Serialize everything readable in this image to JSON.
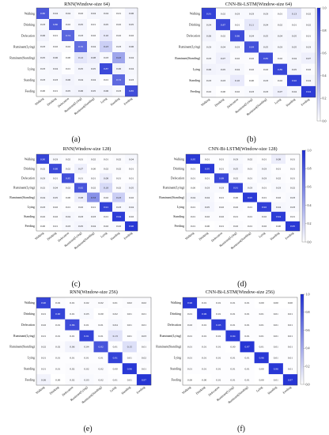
{
  "figure": {
    "captions": [
      "(a)",
      "(b)",
      "(c)",
      "(d)",
      "(e)",
      "(f)"
    ]
  },
  "colorscale": {
    "low": "#ffffff",
    "high": "#1f2fd3",
    "ticks": [
      "0.0",
      "0.2",
      "0.4",
      "0.6",
      "0.8",
      "1.0"
    ]
  },
  "chart_data": [
    {
      "type": "heatmap",
      "title": "RNN(Window-size 64)",
      "rows": [
        "Walking",
        "Drinking",
        "Defecation",
        "Ruminant(Lying)",
        "Ruminant(Standing)",
        "Lying",
        "Standing",
        "Feeding"
      ],
      "cols": [
        "Walking",
        "Drinking",
        "Defecation",
        "Ruminant(Lying)",
        "Ruminant(Standing)",
        "Lying",
        "Standing",
        "Feeding"
      ],
      "values": [
        [
          0.8,
          0.04,
          0.04,
          0.02,
          0.04,
          0.04,
          0.01,
          0.06
        ],
        [
          0.03,
          0.8,
          0.02,
          0.05,
          0.01,
          0.05,
          0.02,
          0.05
        ],
        [
          0.06,
          0.01,
          0.74,
          0.03,
          0.02,
          0.1,
          0.02,
          0.02
        ],
        [
          0.03,
          0.02,
          0.02,
          0.7,
          0.04,
          0.23,
          0.03,
          0.06
        ],
        [
          0.05,
          0.06,
          0.0,
          0.12,
          0.08,
          0.03,
          0.43,
          0.04
        ],
        [
          0.03,
          0.04,
          0.01,
          0.05,
          0.05,
          0.87,
          0.06,
          0.04
        ],
        [
          0.03,
          0.03,
          0.06,
          0.04,
          0.04,
          0.01,
          0.72,
          0.03
        ],
        [
          0.0,
          0.01,
          0.05,
          0.06,
          0.05,
          0.06,
          0.03,
          0.85
        ]
      ]
    },
    {
      "type": "heatmap",
      "title": "CNN-Bi-LSTM(Window-size 64)",
      "rows": [
        "Walking",
        "Drinking",
        "Defecation",
        "Ruminant(Lying)",
        "Ruminant(Standing)",
        "Lying",
        "Standing",
        "Feeding"
      ],
      "cols": [
        "Walking",
        "Drinking",
        "Defecation",
        "Ruminant(Lying)",
        "Ruminant(Standing)",
        "Lying",
        "Standing",
        "Feeding"
      ],
      "values": [
        [
          0.91,
          0.02,
          0.03,
          0.03,
          0.03,
          0.01,
          0.13,
          0.02
        ],
        [
          0.04,
          0.87,
          0.01,
          0.11,
          0.04,
          0.02,
          0.01,
          0.02
        ],
        [
          0.06,
          0.02,
          0.86,
          0.04,
          0.05,
          0.04,
          0.05,
          0.01
        ],
        [
          0.03,
          0.04,
          0.03,
          0.84,
          0.05,
          0.03,
          0.05,
          0.03
        ],
        [
          0.03,
          0.07,
          0.02,
          0.02,
          0.85,
          0.02,
          0.04,
          0.07
        ],
        [
          0.06,
          0.05,
          0.04,
          0.02,
          0.02,
          0.89,
          0.05,
          0.02
        ],
        [
          0.03,
          0.03,
          0.1,
          0.0,
          0.03,
          0.02,
          0.92,
          0.04
        ],
        [
          0.02,
          0.0,
          0.02,
          0.03,
          0.03,
          0.07,
          0.04,
          0.94
        ]
      ]
    },
    {
      "type": "heatmap",
      "title": "RNN(Window-size 128)",
      "rows": [
        "Walking",
        "Drinking",
        "Defecation",
        "Ruminant(Lying)",
        "Ruminant(Standing)",
        "Lying",
        "Standing",
        "Feeding"
      ],
      "cols": [
        "Walking",
        "Drinking",
        "Defecation",
        "Ruminant(Lying)",
        "Ruminant(Standing)",
        "Lying",
        "Standing",
        "Feeding"
      ],
      "values": [
        [
          0.9,
          0.03,
          0.02,
          0.01,
          0.02,
          0.01,
          0.02,
          0.04
        ],
        [
          0.02,
          0.88,
          0.02,
          0.07,
          0.0,
          0.02,
          0.02,
          0.01
        ],
        [
          0.03,
          0.01,
          0.85,
          0.01,
          0.01,
          0.08,
          0.01,
          0.01
        ],
        [
          0.02,
          0.04,
          0.02,
          0.82,
          0.02,
          0.18,
          0.02,
          0.05
        ],
        [
          0.04,
          0.05,
          0.0,
          0.08,
          0.53,
          0.02,
          0.23,
          0.02
        ],
        [
          0.03,
          0.02,
          0.01,
          0.02,
          0.01,
          0.91,
          0.03,
          0.04
        ],
        [
          0.02,
          0.02,
          0.04,
          0.03,
          0.03,
          0.01,
          0.94,
          0.02
        ],
        [
          0.0,
          0.01,
          0.03,
          0.05,
          0.04,
          0.02,
          0.02,
          0.96
        ]
      ]
    },
    {
      "type": "heatmap",
      "title": "CNN-Bi-LSTM(Window-size 128)",
      "rows": [
        "Walking",
        "Drinking",
        "Defecation",
        "Ruminant(Lying)",
        "Ruminant(Standing)",
        "Lying",
        "Standing",
        "Feeding"
      ],
      "cols": [
        "Walking",
        "Drinking",
        "Defecation",
        "Ruminant(Lying)",
        "Ruminant(Standing)",
        "Lying",
        "Standing",
        "Feeding"
      ],
      "values": [
        [
          0.95,
          0.01,
          0.01,
          0.03,
          0.02,
          0.01,
          0.08,
          0.01
        ],
        [
          0.01,
          0.95,
          0.01,
          0.05,
          0.01,
          0.03,
          0.01,
          0.01
        ],
        [
          0.01,
          0.01,
          0.89,
          0.02,
          0.01,
          0.03,
          0.02,
          0.01
        ],
        [
          0.0,
          0.03,
          0.03,
          0.91,
          0.03,
          0.01,
          0.03,
          0.02
        ],
        [
          0.04,
          0.04,
          0.01,
          0.0,
          0.95,
          0.01,
          0.02,
          0.03
        ],
        [
          0.01,
          0.05,
          0.02,
          0.02,
          0.01,
          0.92,
          0.04,
          0.03
        ],
        [
          0.01,
          0.02,
          0.02,
          0.01,
          0.01,
          0.02,
          0.94,
          0.01
        ],
        [
          0.01,
          0.0,
          0.01,
          0.02,
          0.01,
          0.02,
          0.0,
          0.95
        ]
      ]
    },
    {
      "type": "heatmap",
      "title": "RNN(Window-size 256)",
      "rows": [
        "Walking",
        "Drinking",
        "Defecation",
        "Ruminant(Lying)",
        "Ruminant(Standing)",
        "Lying",
        "Standing",
        "Feeding"
      ],
      "cols": [
        "Walking",
        "Drinking",
        "Defecation",
        "Ruminant(Lying)",
        "Ruminant(Standing)",
        "Lying",
        "Standing",
        "Feeding"
      ],
      "values": [
        [
          0.9,
          0.02,
          0.01,
          0.02,
          0.02,
          0.01,
          0.02,
          0.02
        ],
        [
          0.01,
          0.9,
          0.01,
          0.03,
          0.0,
          0.02,
          0.01,
          0.01
        ],
        [
          0.02,
          0.01,
          0.86,
          0.01,
          0.01,
          0.04,
          0.01,
          0.01
        ],
        [
          0.01,
          0.01,
          0.01,
          0.91,
          0.01,
          0.13,
          0.01,
          0.03
        ],
        [
          0.02,
          0.02,
          0.06,
          0.04,
          0.82,
          0.01,
          0.15,
          0.01
        ],
        [
          0.01,
          0.01,
          0.01,
          0.01,
          0.01,
          0.91,
          0.01,
          0.02
        ],
        [
          0.01,
          0.01,
          0.02,
          0.02,
          0.02,
          0.0,
          0.96,
          0.01
        ],
        [
          0.06,
          0.0,
          0.02,
          0.03,
          0.02,
          0.01,
          0.01,
          0.97
        ]
      ]
    },
    {
      "type": "heatmap",
      "title": "CNN-Bi-LSTM(Window-size 256)",
      "rows": [
        "Walking",
        "Drinking",
        "Defecation",
        "Ruminant(Lying)",
        "Ruminant(Standing)",
        "Lying",
        "Standing",
        "Feeding"
      ],
      "cols": [
        "Walking",
        "Drinking",
        "Defecation",
        "Ruminant(Lying)",
        "Ruminant(Standing)",
        "Lying",
        "Standing",
        "Feeding"
      ],
      "values": [
        [
          0.96,
          0.01,
          0.01,
          0.01,
          0.01,
          0.0,
          0.0,
          0.0
        ],
        [
          0.01,
          0.96,
          0.01,
          0.01,
          0.01,
          0.01,
          0.01,
          0.01
        ],
        [
          0.02,
          0.01,
          0.93,
          0.01,
          0.01,
          0.01,
          0.01,
          0.01
        ],
        [
          0.01,
          0.01,
          0.01,
          0.94,
          0.01,
          0.01,
          0.01,
          0.01
        ],
        [
          0.01,
          0.01,
          0.01,
          0.0,
          0.97,
          0.01,
          0.01,
          0.01
        ],
        [
          0.01,
          0.01,
          0.01,
          0.01,
          0.01,
          0.96,
          0.01,
          0.01
        ],
        [
          0.01,
          0.01,
          0.01,
          0.01,
          0.01,
          0.0,
          0.96,
          0.01
        ],
        [
          0.0,
          0.0,
          0.01,
          0.01,
          0.01,
          0.0,
          0.01,
          0.97
        ]
      ]
    }
  ]
}
